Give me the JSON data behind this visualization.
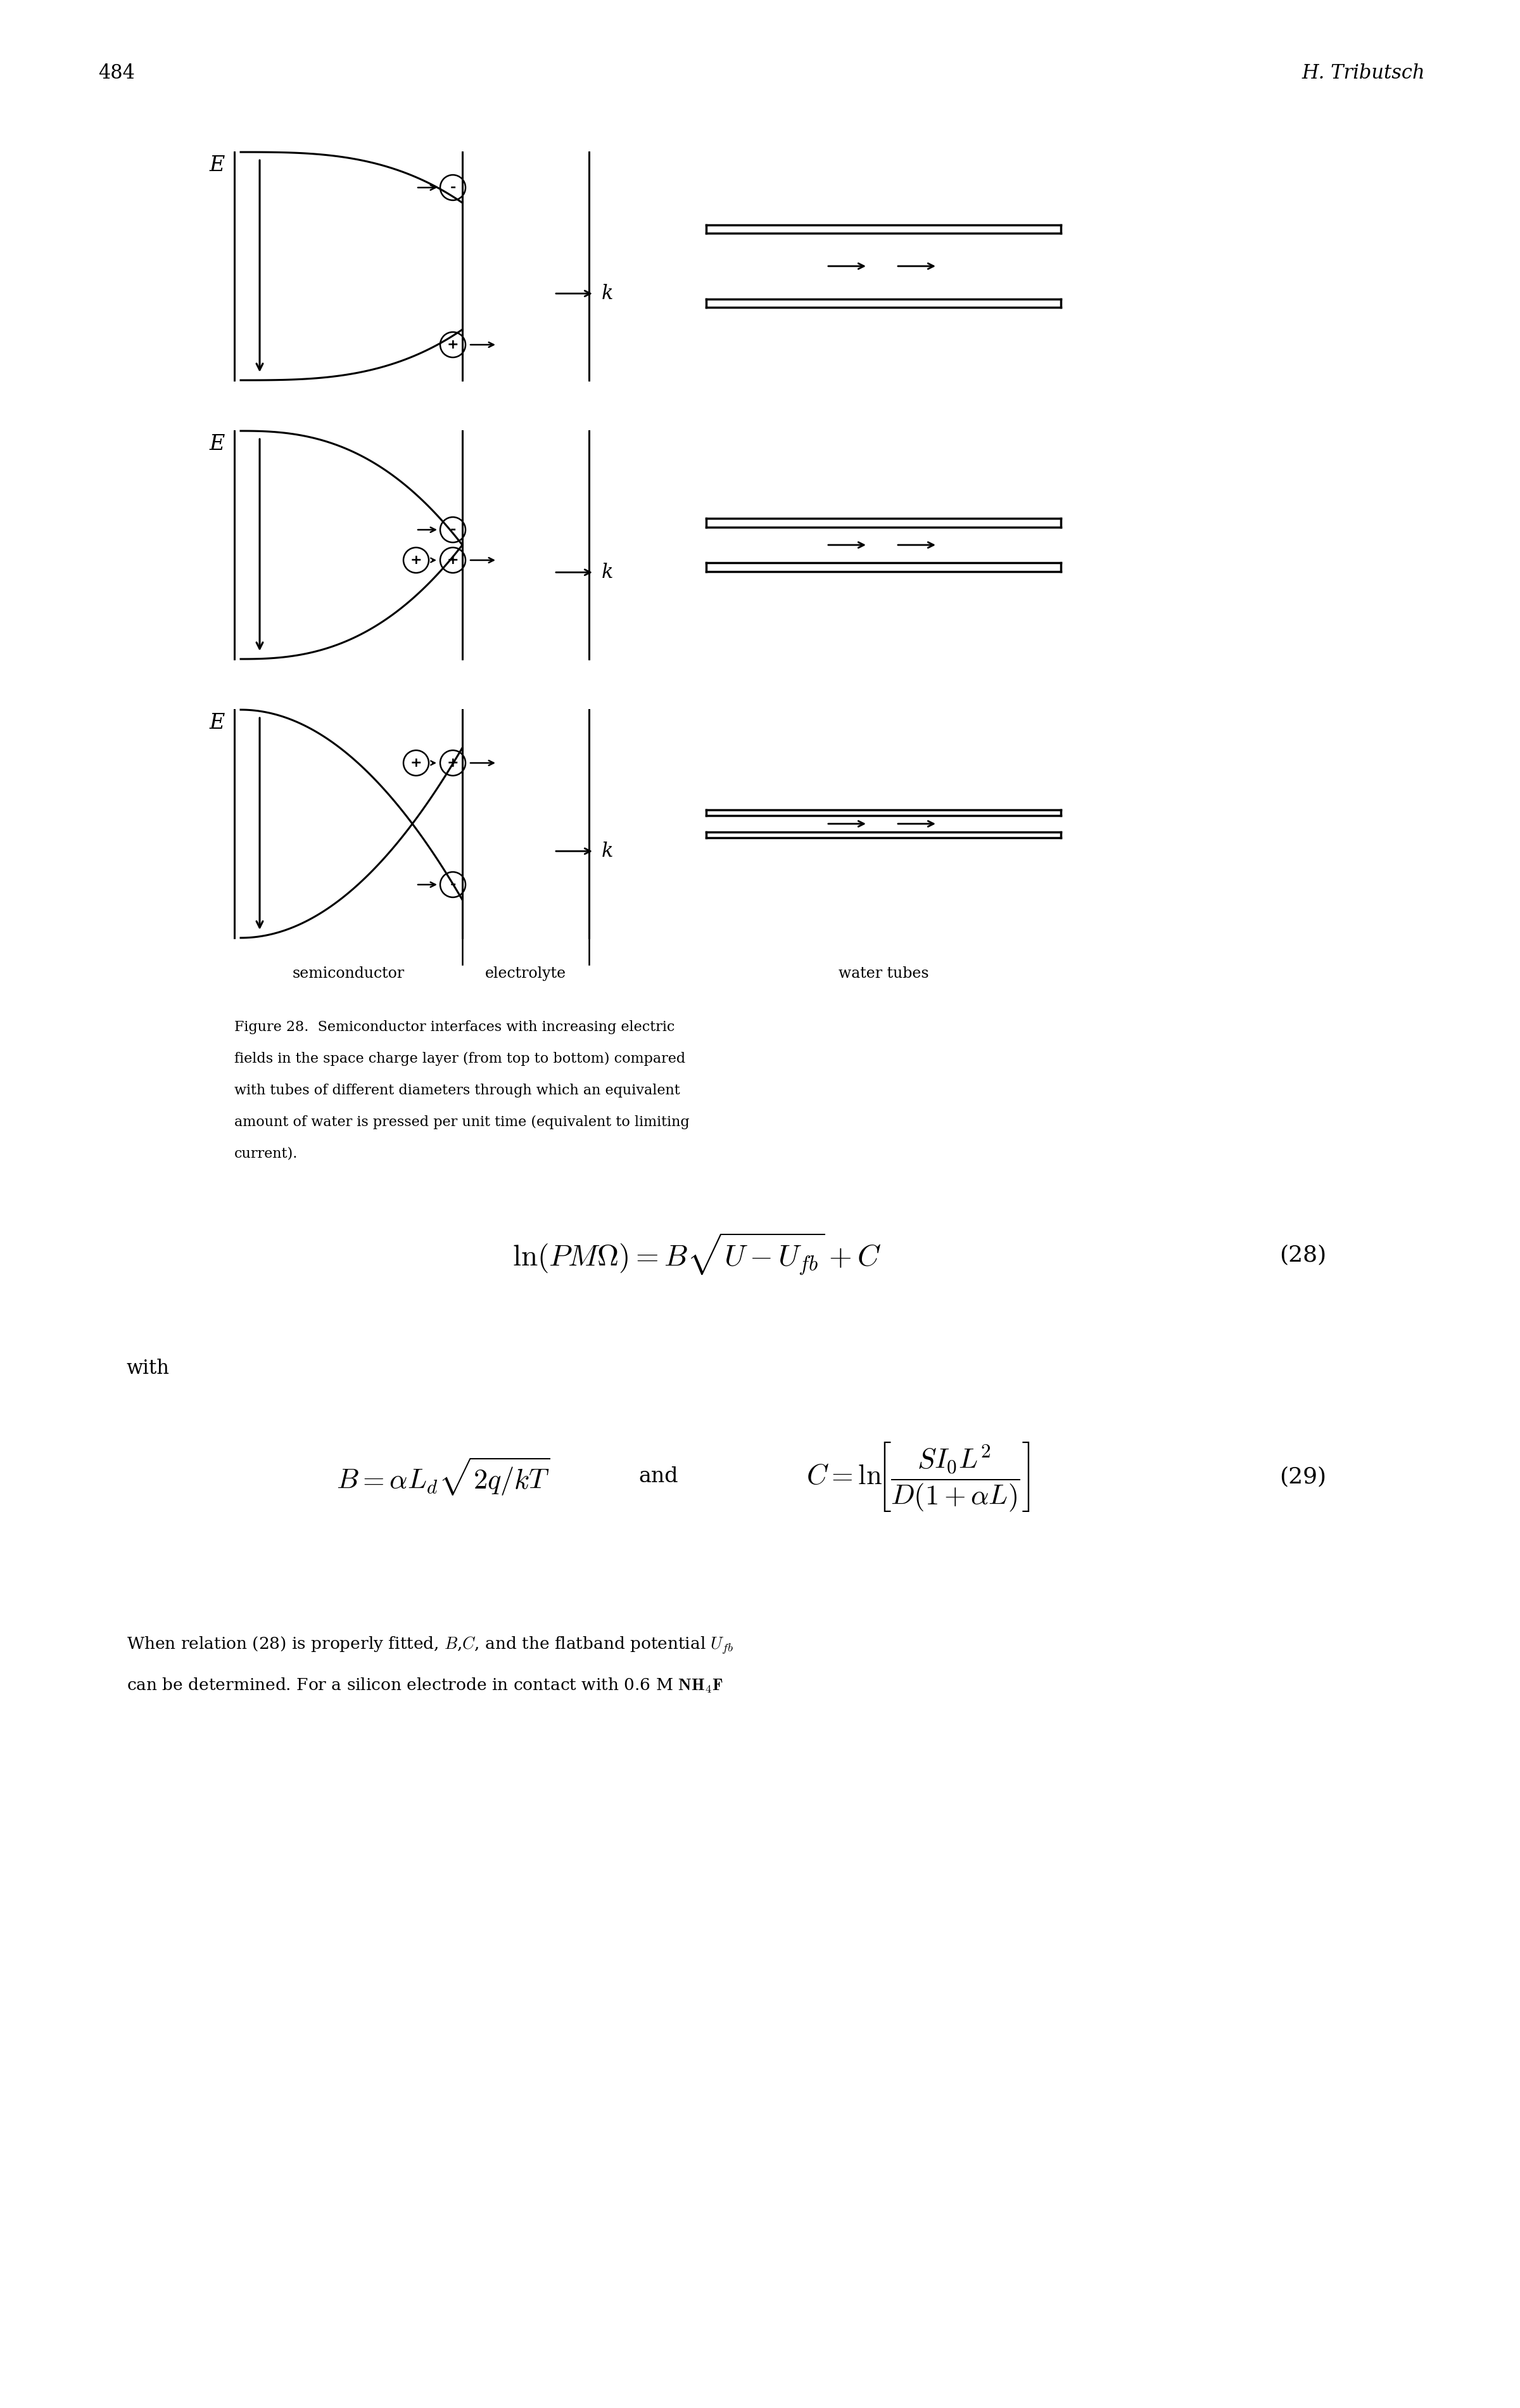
{
  "page_number": "484",
  "header_right": "H. Tributsch",
  "background_color": "#ffffff",
  "line_color": "#000000",
  "sc_label": "semiconductor",
  "el_label": "electrolyte",
  "wt_label": "water tubes",
  "figure_caption_line1": "Figure 28.  Semiconductor interfaces with increasing electric",
  "figure_caption_line2": "fields in the space charge layer (from top to bottom) compared",
  "figure_caption_line3": "with tubes of different diameters through which an equivalent",
  "figure_caption_line4": "amount of water is pressed per unit time (equivalent to limiting",
  "figure_caption_line5": "current).",
  "eq28_label": "(28)",
  "eq29_label": "(29)",
  "with_text": "with"
}
